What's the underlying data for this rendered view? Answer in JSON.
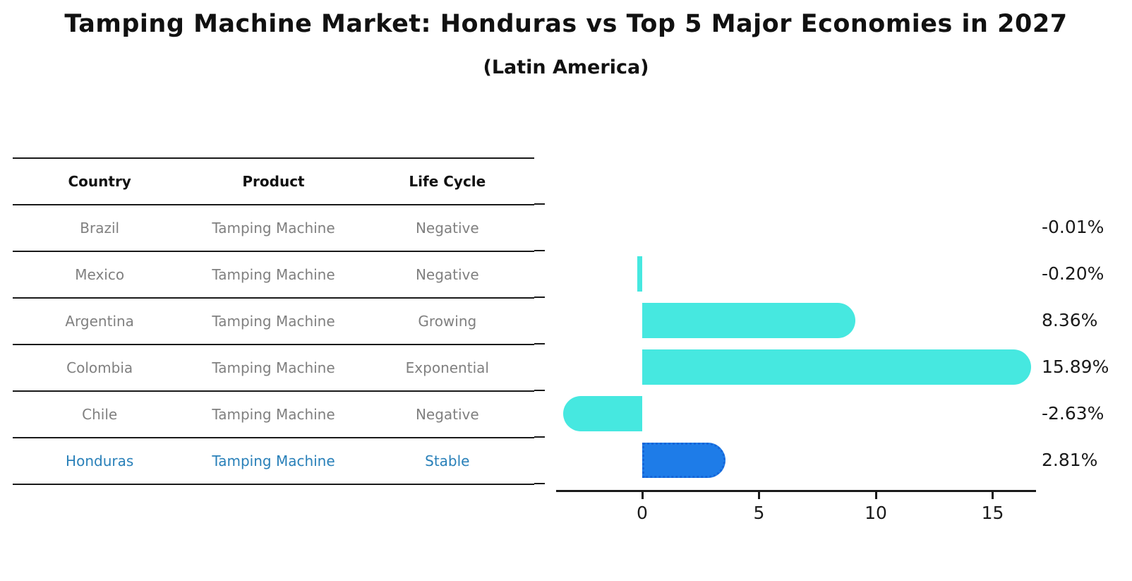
{
  "title": "Tamping Machine Market: Honduras vs Top 5 Major Economies in 2027",
  "subtitle": "(Latin America)",
  "table": {
    "headers": [
      "Country",
      "Product",
      "Life Cycle"
    ],
    "rows": [
      {
        "country": "Brazil",
        "product": "Tamping Machine",
        "life_cycle": "Negative",
        "highlighted": false
      },
      {
        "country": "Mexico",
        "product": "Tamping Machine",
        "life_cycle": "Negative",
        "highlighted": false
      },
      {
        "country": "Argentina",
        "product": "Tamping Machine",
        "life_cycle": "Growing",
        "highlighted": false
      },
      {
        "country": "Colombia",
        "product": "Tamping Machine",
        "life_cycle": "Exponential",
        "highlighted": false
      },
      {
        "country": "Chile",
        "product": "Tamping Machine",
        "life_cycle": "Negative",
        "highlighted": false
      },
      {
        "country": "Honduras",
        "product": "Tamping Machine",
        "life_cycle": "Stable",
        "highlighted": true
      }
    ]
  },
  "chart_data": {
    "type": "bar",
    "orientation": "horizontal",
    "categories": [
      "Brazil",
      "Mexico",
      "Argentina",
      "Colombia",
      "Chile",
      "Honduras"
    ],
    "values": [
      -0.01,
      -0.2,
      8.36,
      15.89,
      -2.63,
      2.81
    ],
    "value_labels": [
      "-0.01%",
      "-0.20%",
      "8.36%",
      "15.89%",
      "-2.63%",
      "2.81%"
    ],
    "x_ticks": [
      0,
      5,
      10,
      15
    ],
    "xlim": [
      -3.7,
      16.9
    ],
    "grid": false,
    "legend": false,
    "highlight_index": 5,
    "colors": {
      "default_bar": "#46E8E0",
      "highlight_bar": "#1E7CE8",
      "highlight_bar_border": "#1565D8",
      "highlight_text": "#2980B9",
      "row_text": "#808080",
      "axis": "#1a1a1a"
    }
  }
}
